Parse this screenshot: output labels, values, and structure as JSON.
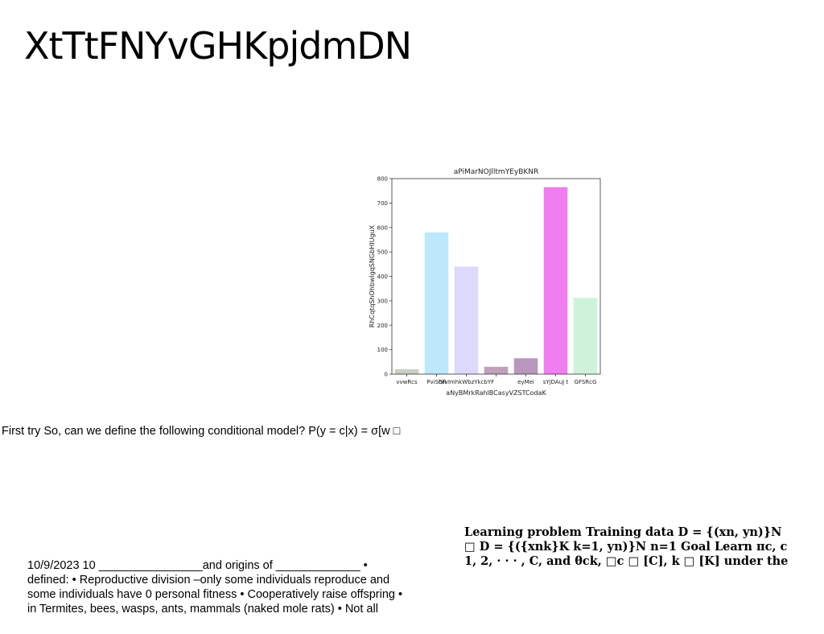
{
  "slide": {
    "title": "XtTtFNYvGHKpjdmDN"
  },
  "text_blocks": {
    "first_try": "First try So, can we define the following conditional model? P(y = c|x) = σ[w □",
    "notes": [
      "10/9/2023 10 ________________and origins of _____________ •",
      "defined: • Reproductive division –only some individuals reproduce and",
      "some individuals have 0 personal fitness • Cooperatively raise offspring •",
      "in Termites, bees, wasps, ants, mammals (naked mole rats) • Not all"
    ],
    "learning": [
      "Learning problem Training data D = {(xn, yn)}N",
      "□ D = {({xnk}K k=1, yn)}N n=1 Goal Learn πc, c",
      "1, 2, · · · , C, and θck, □c □ [C], k □ [K] under the"
    ]
  },
  "chart_data": {
    "type": "bar",
    "title": "aPiMarNOJlltmYEyBKNR",
    "xlabel": "aNyBMrkRahlBCasyVZSTCodaK",
    "ylabel": "RhCqtqShOhbwlgqSNGbHIUguX",
    "categories": [
      "vvwRcs",
      "PviShH",
      "GfvImhkWbzYkcbYF",
      "",
      "eyMei",
      "sYjDAuJ t",
      "GFSRcG"
    ],
    "values": [
      20,
      580,
      440,
      30,
      65,
      765,
      312
    ],
    "colors": [
      "#c9cfc4",
      "#bde8fb",
      "#ddd9fa",
      "#c0a0bd",
      "#b997bc",
      "#f07ef0",
      "#cdf4da"
    ],
    "ylim": [
      0,
      800
    ],
    "yticks": [
      0,
      100,
      200,
      300,
      400,
      500,
      600,
      700,
      800
    ],
    "grid": false
  }
}
